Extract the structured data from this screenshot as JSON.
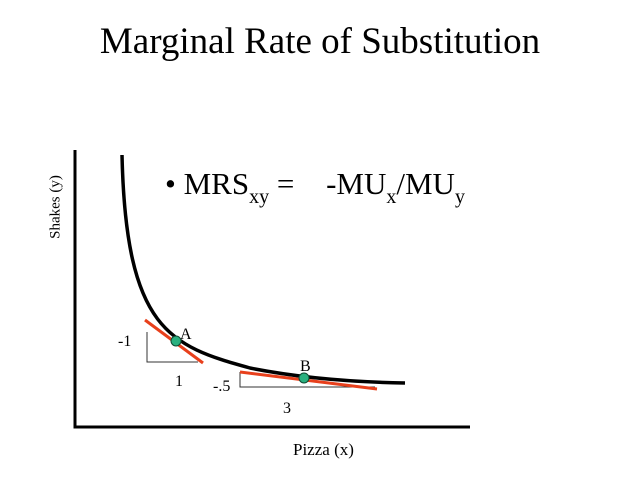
{
  "slide": {
    "title": "Marginal Rate of Substitution",
    "formula": {
      "bullet": "•",
      "lhs": "MRS",
      "lhs_sub": "xy",
      "equals": "=",
      "rhs_num": "-MU",
      "rhs_num_sub": "x",
      "slash": "/MU",
      "rhs_den_sub": "y"
    }
  },
  "chart": {
    "x_axis_label": "Pizza (x)",
    "y_axis_label": "Shakes (y)",
    "point_a": {
      "label": "A",
      "rise_label": "-1",
      "run_label": "1"
    },
    "point_b": {
      "label": "B",
      "rise_label": "-.5",
      "run_label": "3"
    },
    "colors": {
      "curve": "#000000",
      "tangent": "#e8401c",
      "point": "#2ab07f"
    }
  }
}
